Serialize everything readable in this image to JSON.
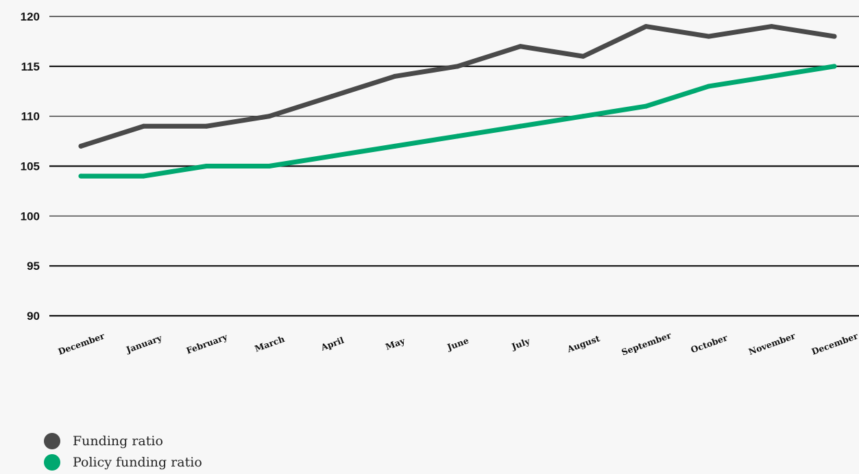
{
  "chart_data": {
    "type": "line",
    "title": "",
    "xlabel": "",
    "ylabel": "",
    "categories": [
      "December",
      "January",
      "February",
      "March",
      "April",
      "May",
      "June",
      "July",
      "August",
      "September",
      "October",
      "November",
      "December"
    ],
    "ylim": [
      90,
      120
    ],
    "yticks": [
      90,
      95,
      100,
      105,
      110,
      115,
      120
    ],
    "grid": true,
    "legend_position": "bottom-left",
    "series": [
      {
        "name": "Funding ratio",
        "color": "#4a4a4a",
        "values": [
          107,
          109,
          109,
          110,
          112,
          114,
          115,
          117,
          116,
          119,
          118,
          119,
          118
        ]
      },
      {
        "name": "Policy funding ratio",
        "color": "#00a870",
        "values": [
          104,
          104,
          105,
          105,
          106,
          107,
          108,
          109,
          110,
          111,
          113,
          114,
          115
        ]
      }
    ]
  },
  "legend": {
    "items": [
      {
        "label": "Funding ratio",
        "color": "#4a4a4a"
      },
      {
        "label": "Policy funding ratio",
        "color": "#00a870"
      }
    ]
  }
}
